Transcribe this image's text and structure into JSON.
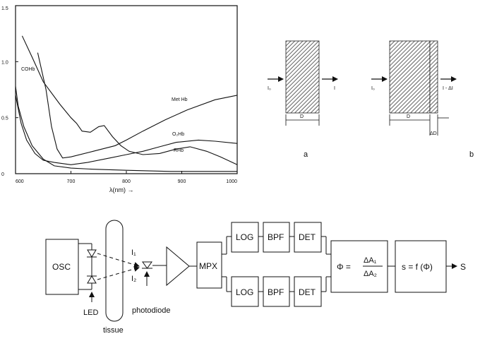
{
  "chart_data": {
    "type": "line",
    "xlabel": "λ(nm) →",
    "ylabel": "",
    "xlim": [
      600,
      1000
    ],
    "ylim": [
      0,
      1.5
    ],
    "x_ticks": [
      "600",
      "700",
      "800",
      "900",
      "1000"
    ],
    "y_ticks": [
      "0",
      "0.5",
      "1.0",
      "1.5"
    ],
    "grid": false,
    "series": [
      {
        "name": "COHb",
        "points": [
          [
            600,
            0.78
          ],
          [
            605,
            0.6
          ],
          [
            615,
            0.42
          ],
          [
            630,
            0.25
          ],
          [
            650,
            0.13
          ],
          [
            670,
            0.07
          ],
          [
            700,
            0.05
          ],
          [
            740,
            0.04
          ],
          [
            800,
            0.03
          ],
          [
            880,
            0.02
          ],
          [
            1000,
            0.02
          ]
        ]
      },
      {
        "name": "Met Hb",
        "points": [
          [
            612,
            1.23
          ],
          [
            630,
            1.04
          ],
          [
            650,
            0.82
          ],
          [
            680,
            0.62
          ],
          [
            700,
            0.5
          ],
          [
            710,
            0.45
          ],
          [
            720,
            0.38
          ],
          [
            735,
            0.37
          ],
          [
            750,
            0.42
          ],
          [
            760,
            0.43
          ],
          [
            775,
            0.33
          ],
          [
            790,
            0.25
          ],
          [
            805,
            0.2
          ],
          [
            830,
            0.17
          ],
          [
            860,
            0.18
          ],
          [
            890,
            0.22
          ],
          [
            915,
            0.24
          ],
          [
            945,
            0.2
          ],
          [
            970,
            0.15
          ],
          [
            1000,
            0.08
          ]
        ]
      },
      {
        "name": "O2Hb",
        "points": [
          [
            640,
            1.08
          ],
          [
            655,
            0.75
          ],
          [
            665,
            0.42
          ],
          [
            675,
            0.22
          ],
          [
            685,
            0.14
          ],
          [
            700,
            0.15
          ],
          [
            740,
            0.2
          ],
          [
            780,
            0.25
          ],
          [
            800,
            0.3
          ],
          [
            830,
            0.38
          ],
          [
            870,
            0.48
          ],
          [
            910,
            0.57
          ],
          [
            960,
            0.66
          ],
          [
            1000,
            0.7
          ]
        ]
      },
      {
        "name": "RHb",
        "points": [
          [
            600,
            0.7
          ],
          [
            610,
            0.45
          ],
          [
            620,
            0.3
          ],
          [
            635,
            0.18
          ],
          [
            650,
            0.12
          ],
          [
            670,
            0.1
          ],
          [
            700,
            0.08
          ],
          [
            730,
            0.1
          ],
          [
            770,
            0.14
          ],
          [
            800,
            0.17
          ],
          [
            830,
            0.2
          ],
          [
            860,
            0.24
          ],
          [
            890,
            0.28
          ],
          [
            930,
            0.3
          ],
          [
            960,
            0.29
          ],
          [
            1000,
            0.27
          ]
        ]
      }
    ]
  },
  "curve_labels": {
    "cohb": "COHb",
    "methb": "Met Hb",
    "o2hb": "O₂Hb",
    "rhb": "RHb"
  },
  "slab_diagram": {
    "a": {
      "in_label": "I₀",
      "out_label": "I",
      "thickness_label": "D",
      "panel_label": "a"
    },
    "b": {
      "in_label": "I₀",
      "out_label": "I - ΔI",
      "thickness_label": "D",
      "delta_label": "ΔD",
      "panel_label": "b"
    }
  },
  "block_diagram": {
    "osc": "OSC",
    "led": "LED",
    "tissue": "tissue",
    "i1": "I₁",
    "i2": "I₂",
    "photodiode": "photodiode",
    "mpx": "MPX",
    "upper_chain": [
      "LOG",
      "BPF",
      "DET"
    ],
    "lower_chain": [
      "LOG",
      "BPF",
      "DET"
    ],
    "ratio_lhs": "Φ =",
    "ratio_num": "ΔA₁",
    "ratio_den": "ΔA₂",
    "s_func": "s = f (Φ)",
    "output": "S"
  }
}
